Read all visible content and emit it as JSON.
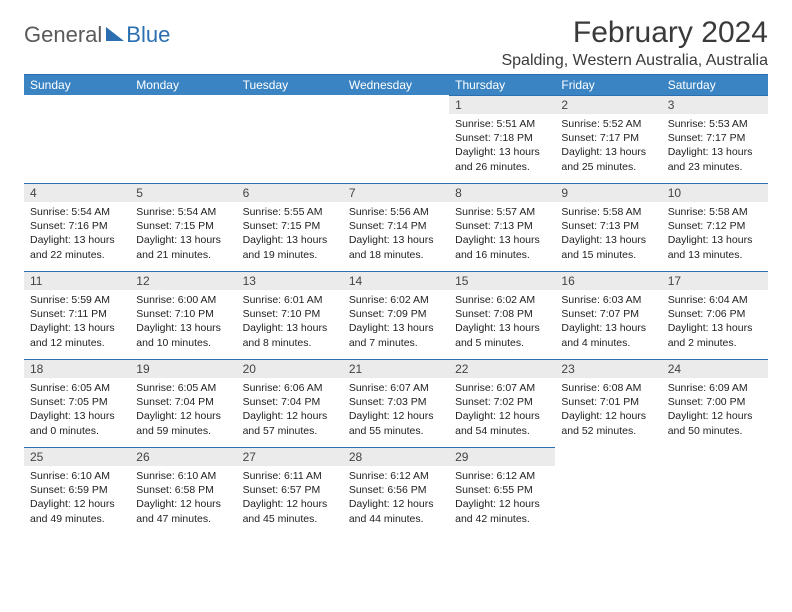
{
  "logo": {
    "text1": "General",
    "text2": "Blue"
  },
  "title": "February 2024",
  "location": "Spalding, Western Australia, Australia",
  "weekdays": [
    "Sunday",
    "Monday",
    "Tuesday",
    "Wednesday",
    "Thursday",
    "Friday",
    "Saturday"
  ],
  "colors": {
    "header_bg": "#3a84c4",
    "divider": "#2b6fb0",
    "daynum_bg": "#ebebeb"
  },
  "weeks": [
    [
      {
        "num": "",
        "lines": []
      },
      {
        "num": "",
        "lines": []
      },
      {
        "num": "",
        "lines": []
      },
      {
        "num": "",
        "lines": []
      },
      {
        "num": "1",
        "lines": [
          "Sunrise: 5:51 AM",
          "Sunset: 7:18 PM",
          "Daylight: 13 hours and 26 minutes."
        ]
      },
      {
        "num": "2",
        "lines": [
          "Sunrise: 5:52 AM",
          "Sunset: 7:17 PM",
          "Daylight: 13 hours and 25 minutes."
        ]
      },
      {
        "num": "3",
        "lines": [
          "Sunrise: 5:53 AM",
          "Sunset: 7:17 PM",
          "Daylight: 13 hours and 23 minutes."
        ]
      }
    ],
    [
      {
        "num": "4",
        "lines": [
          "Sunrise: 5:54 AM",
          "Sunset: 7:16 PM",
          "Daylight: 13 hours and 22 minutes."
        ]
      },
      {
        "num": "5",
        "lines": [
          "Sunrise: 5:54 AM",
          "Sunset: 7:15 PM",
          "Daylight: 13 hours and 21 minutes."
        ]
      },
      {
        "num": "6",
        "lines": [
          "Sunrise: 5:55 AM",
          "Sunset: 7:15 PM",
          "Daylight: 13 hours and 19 minutes."
        ]
      },
      {
        "num": "7",
        "lines": [
          "Sunrise: 5:56 AM",
          "Sunset: 7:14 PM",
          "Daylight: 13 hours and 18 minutes."
        ]
      },
      {
        "num": "8",
        "lines": [
          "Sunrise: 5:57 AM",
          "Sunset: 7:13 PM",
          "Daylight: 13 hours and 16 minutes."
        ]
      },
      {
        "num": "9",
        "lines": [
          "Sunrise: 5:58 AM",
          "Sunset: 7:13 PM",
          "Daylight: 13 hours and 15 minutes."
        ]
      },
      {
        "num": "10",
        "lines": [
          "Sunrise: 5:58 AM",
          "Sunset: 7:12 PM",
          "Daylight: 13 hours and 13 minutes."
        ]
      }
    ],
    [
      {
        "num": "11",
        "lines": [
          "Sunrise: 5:59 AM",
          "Sunset: 7:11 PM",
          "Daylight: 13 hours and 12 minutes."
        ]
      },
      {
        "num": "12",
        "lines": [
          "Sunrise: 6:00 AM",
          "Sunset: 7:10 PM",
          "Daylight: 13 hours and 10 minutes."
        ]
      },
      {
        "num": "13",
        "lines": [
          "Sunrise: 6:01 AM",
          "Sunset: 7:10 PM",
          "Daylight: 13 hours and 8 minutes."
        ]
      },
      {
        "num": "14",
        "lines": [
          "Sunrise: 6:02 AM",
          "Sunset: 7:09 PM",
          "Daylight: 13 hours and 7 minutes."
        ]
      },
      {
        "num": "15",
        "lines": [
          "Sunrise: 6:02 AM",
          "Sunset: 7:08 PM",
          "Daylight: 13 hours and 5 minutes."
        ]
      },
      {
        "num": "16",
        "lines": [
          "Sunrise: 6:03 AM",
          "Sunset: 7:07 PM",
          "Daylight: 13 hours and 4 minutes."
        ]
      },
      {
        "num": "17",
        "lines": [
          "Sunrise: 6:04 AM",
          "Sunset: 7:06 PM",
          "Daylight: 13 hours and 2 minutes."
        ]
      }
    ],
    [
      {
        "num": "18",
        "lines": [
          "Sunrise: 6:05 AM",
          "Sunset: 7:05 PM",
          "Daylight: 13 hours and 0 minutes."
        ]
      },
      {
        "num": "19",
        "lines": [
          "Sunrise: 6:05 AM",
          "Sunset: 7:04 PM",
          "Daylight: 12 hours and 59 minutes."
        ]
      },
      {
        "num": "20",
        "lines": [
          "Sunrise: 6:06 AM",
          "Sunset: 7:04 PM",
          "Daylight: 12 hours and 57 minutes."
        ]
      },
      {
        "num": "21",
        "lines": [
          "Sunrise: 6:07 AM",
          "Sunset: 7:03 PM",
          "Daylight: 12 hours and 55 minutes."
        ]
      },
      {
        "num": "22",
        "lines": [
          "Sunrise: 6:07 AM",
          "Sunset: 7:02 PM",
          "Daylight: 12 hours and 54 minutes."
        ]
      },
      {
        "num": "23",
        "lines": [
          "Sunrise: 6:08 AM",
          "Sunset: 7:01 PM",
          "Daylight: 12 hours and 52 minutes."
        ]
      },
      {
        "num": "24",
        "lines": [
          "Sunrise: 6:09 AM",
          "Sunset: 7:00 PM",
          "Daylight: 12 hours and 50 minutes."
        ]
      }
    ],
    [
      {
        "num": "25",
        "lines": [
          "Sunrise: 6:10 AM",
          "Sunset: 6:59 PM",
          "Daylight: 12 hours and 49 minutes."
        ]
      },
      {
        "num": "26",
        "lines": [
          "Sunrise: 6:10 AM",
          "Sunset: 6:58 PM",
          "Daylight: 12 hours and 47 minutes."
        ]
      },
      {
        "num": "27",
        "lines": [
          "Sunrise: 6:11 AM",
          "Sunset: 6:57 PM",
          "Daylight: 12 hours and 45 minutes."
        ]
      },
      {
        "num": "28",
        "lines": [
          "Sunrise: 6:12 AM",
          "Sunset: 6:56 PM",
          "Daylight: 12 hours and 44 minutes."
        ]
      },
      {
        "num": "29",
        "lines": [
          "Sunrise: 6:12 AM",
          "Sunset: 6:55 PM",
          "Daylight: 12 hours and 42 minutes."
        ]
      },
      {
        "num": "",
        "lines": []
      },
      {
        "num": "",
        "lines": []
      }
    ]
  ]
}
